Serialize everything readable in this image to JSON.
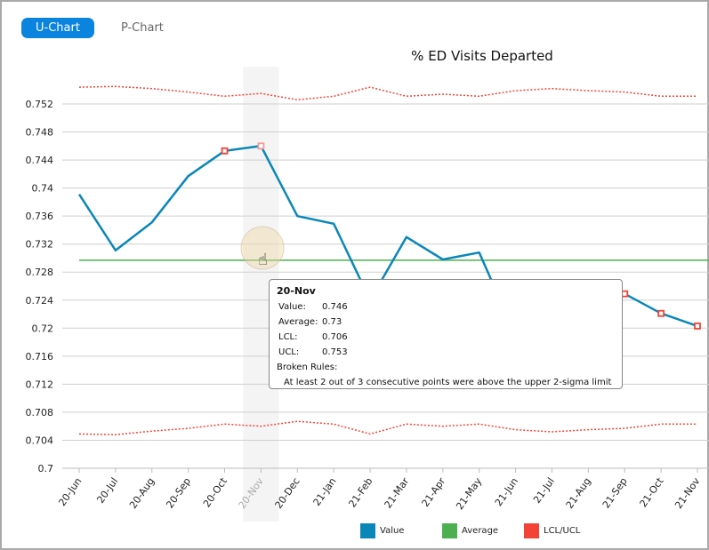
{
  "tabs": [
    {
      "label": "U-Chart",
      "active": true
    },
    {
      "label": "P-Chart",
      "active": false
    }
  ],
  "chart_data": {
    "type": "line",
    "title": "% ED Visits Departed",
    "categories": [
      "20-Jun",
      "20-Jul",
      "20-Aug",
      "20-Sep",
      "20-Oct",
      "20-Nov",
      "20-Dec",
      "21-Jan",
      "21-Feb",
      "21-Mar",
      "21-Apr",
      "21-May",
      "21-Jun",
      "21-Jul",
      "21-Aug",
      "21-Sep",
      "21-Oct",
      "21-Nov"
    ],
    "ylim": [
      0.7,
      0.7545
    ],
    "yticks": [
      "0.7",
      "0.704",
      "0.708",
      "0.712",
      "0.716",
      "0.72",
      "0.724",
      "0.728",
      "0.732",
      "0.736",
      "0.74",
      "0.744",
      "0.748",
      "0.752"
    ],
    "grid": true,
    "legend_position": "bottom",
    "series": [
      {
        "name": "Value",
        "color": "#0a87b8",
        "values": [
          0.7391,
          0.7311,
          0.7351,
          0.7417,
          0.7453,
          0.746,
          0.736,
          0.7349,
          0.724,
          0.733,
          0.7298,
          0.7308,
          0.719,
          0.722,
          0.723,
          0.7249,
          0.7221,
          0.7203
        ]
      },
      {
        "name": "Average",
        "color": "#4caf50",
        "values": [
          0.7297,
          0.7297,
          0.7297,
          0.7297,
          0.7297,
          0.7297,
          0.7297,
          0.7297,
          0.7297,
          0.7297,
          0.7297,
          0.7297,
          0.7297,
          0.7297,
          0.7297,
          0.7297,
          0.7297,
          0.7297
        ]
      },
      {
        "name": "UCL",
        "color": "#f44336",
        "values": [
          0.7544,
          0.7545,
          0.7542,
          0.7537,
          0.7531,
          0.7535,
          0.7526,
          0.7531,
          0.7544,
          0.7531,
          0.7534,
          0.7531,
          0.7539,
          0.7542,
          0.7539,
          0.7537,
          0.7531,
          0.7531
        ]
      },
      {
        "name": "LCL",
        "color": "#f44336",
        "values": [
          0.7049,
          0.7048,
          0.7053,
          0.7057,
          0.7063,
          0.706,
          0.7067,
          0.7063,
          0.7049,
          0.7063,
          0.706,
          0.7063,
          0.7055,
          0.7052,
          0.7055,
          0.7057,
          0.7063,
          0.7063
        ]
      }
    ],
    "flagged_points": [
      "20-Oct",
      "20-Nov",
      "21-Sep",
      "21-Oct",
      "21-Nov"
    ],
    "highlighted_category": "20-Nov",
    "legend": [
      {
        "label": "Value",
        "color": "#0a87b8"
      },
      {
        "label": "Average",
        "color": "#4caf50"
      },
      {
        "label": "LCL/UCL",
        "color": "#f44336"
      }
    ]
  },
  "tooltip": {
    "title": "20-Nov",
    "rows": [
      {
        "k": "Value:",
        "v": "0.746"
      },
      {
        "k": "Average:",
        "v": "0.73"
      },
      {
        "k": "LCL:",
        "v": "0.706"
      },
      {
        "k": "UCL:",
        "v": "0.753"
      }
    ],
    "broken_label": "Broken Rules:",
    "rule": "At least 2 out of 3 consecutive points were above the upper 2-sigma limit"
  }
}
